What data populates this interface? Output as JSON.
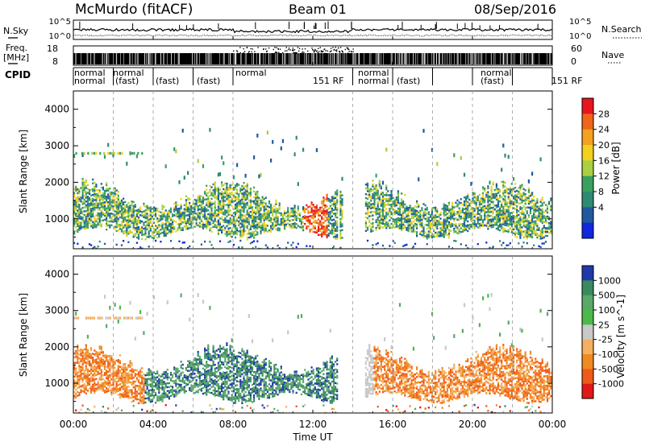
{
  "header": {
    "site": "McMurdo (fitACF)",
    "beam": "Beam 01",
    "date": "08/Sep/2016"
  },
  "side_labels": {
    "nsky": "N.Sky",
    "nsearch": "N.Search",
    "freq_line1": "Freq.",
    "freq_line2": "[MHz]",
    "nave": "Nave",
    "cpid": "CPID"
  },
  "noise_axis": {
    "top": "10^5",
    "bottom": "10^0"
  },
  "freq_axis": {
    "ticks": [
      "18",
      "8"
    ]
  },
  "nave_axis": {
    "ticks": [
      "60",
      "0"
    ]
  },
  "cpid_labels": {
    "row1": [
      "normal",
      "normal",
      "normal",
      "normal",
      "normal"
    ],
    "row2": [
      "normal",
      "(fast)",
      "(fast)",
      "(fast)",
      "151 RF",
      "normal",
      "(fast)",
      "(fast)",
      "151 RF"
    ]
  },
  "x_axis": {
    "label": "Time UT",
    "ticks": [
      "00:00",
      "04:00",
      "08:00",
      "12:00",
      "16:00",
      "20:00",
      "00:00"
    ]
  },
  "chart_data": [
    {
      "type": "heatmap",
      "title": "Power",
      "ylabel": "Slant Range [km]",
      "y_ticks": [
        "1000",
        "2000",
        "3000",
        "4000"
      ],
      "ylim": [
        180,
        4500
      ],
      "xlim": [
        "00:00",
        "24:00"
      ],
      "colorbar": {
        "label": "Power [dB]",
        "ticks": [
          "28",
          "24",
          "20",
          "16",
          "12",
          "8",
          "4"
        ],
        "colors": [
          "#e8141e",
          "#f06418",
          "#f4a020",
          "#f2d020",
          "#a8d040",
          "#3aa060",
          "#2f8a74",
          "#1f5aa0",
          "#1028e0"
        ]
      },
      "features": [
        {
          "name": "main-band",
          "start": "00:00",
          "end": "24:00",
          "range_km": [
            600,
            1500
          ]
        },
        {
          "name": "strong-echo",
          "start": "11:30",
          "end": "12:45",
          "range_km": [
            700,
            1500
          ]
        }
      ]
    },
    {
      "type": "heatmap",
      "title": "Velocity",
      "ylabel": "Slant Range [km]",
      "y_ticks": [
        "1000",
        "2000",
        "3000",
        "4000"
      ],
      "ylim": [
        180,
        4500
      ],
      "xlim": [
        "00:00",
        "24:00"
      ],
      "colorbar": {
        "label": "Velocity [m s^-1]",
        "ticks": [
          "1000",
          "500",
          "100",
          "25",
          "-25",
          "-100",
          "-500",
          "-1000"
        ],
        "colors": [
          "#1f3aa8",
          "#3a8a60",
          "#5aa868",
          "#4cb84c",
          "#c8c8c8",
          "#f4b060",
          "#f08a20",
          "#f05a18",
          "#e01818"
        ]
      },
      "features": [
        {
          "name": "negative-velocity-early",
          "start": "00:00",
          "end": "03:30"
        },
        {
          "name": "positive-velocity-mid",
          "start": "03:30",
          "end": "14:00"
        },
        {
          "name": "negative-velocity-late",
          "start": "15:00",
          "end": "24:00"
        }
      ]
    }
  ]
}
